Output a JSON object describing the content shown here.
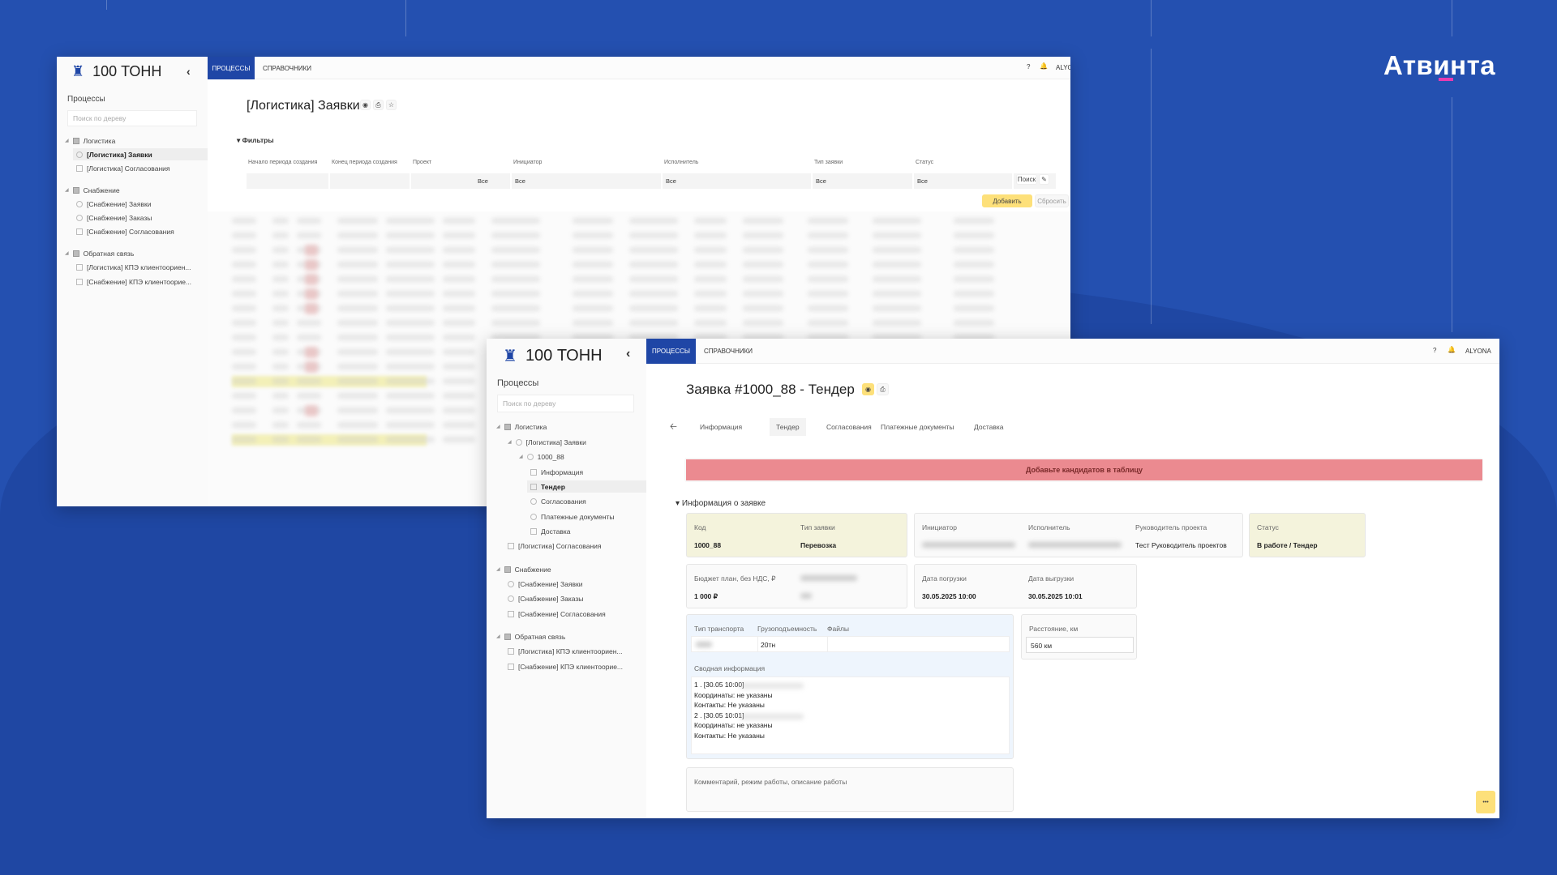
{
  "brand": {
    "logo_text": "Атвинта"
  },
  "app": {
    "name": "100 ТОНН",
    "nav_tabs": [
      "ПРОЦЕССЫ",
      "СПРАВОЧНИКИ"
    ],
    "help": "?",
    "user": "ALYONA"
  },
  "back": {
    "sidebar_title": "Процессы",
    "search_placeholder": "Поиск по дереву",
    "tree": [
      {
        "label": "Логистика",
        "level": 0,
        "icon": "folder"
      },
      {
        "label": "[Логистика] Заявки",
        "level": 1,
        "icon": "circle",
        "selected": true
      },
      {
        "label": "[Логистика] Согласования",
        "level": 1,
        "icon": "grid"
      },
      {
        "label": "Снабжение",
        "level": 0,
        "icon": "folder"
      },
      {
        "label": "[Снабжение] Заявки",
        "level": 1,
        "icon": "circle"
      },
      {
        "label": "[Снабжение] Заказы",
        "level": 1,
        "icon": "circle"
      },
      {
        "label": "[Снабжение] Согласования",
        "level": 1,
        "icon": "grid"
      },
      {
        "label": "Обратная связь",
        "level": 0,
        "icon": "folder"
      },
      {
        "label": "[Логистика] КПЭ клиентоориен...",
        "level": 1,
        "icon": "grid"
      },
      {
        "label": "[Снабжение] КПЭ клиентоорие...",
        "level": 1,
        "icon": "grid"
      }
    ],
    "title": "[Логистика] Заявки",
    "filters_label": "Фильтры",
    "filters": [
      {
        "label": "Начало периода создания",
        "value": ""
      },
      {
        "label": "Конец периода создания",
        "value": ""
      },
      {
        "label": "Проект",
        "value": "Все"
      },
      {
        "label": "Инициатор",
        "value": "Все"
      },
      {
        "label": "Исполнитель",
        "value": "Все"
      },
      {
        "label": "Тип заявки",
        "value": "Все"
      },
      {
        "label": "Статус",
        "value": "Все"
      }
    ],
    "search_button": "Поиск",
    "add_button": "Добавить",
    "reset_button": "Сбросить"
  },
  "front": {
    "sidebar_title": "Процессы",
    "search_placeholder": "Поиск по дереву",
    "tree": [
      {
        "label": "Логистика",
        "level": 0,
        "icon": "folder"
      },
      {
        "label": "[Логистика] Заявки",
        "level": 1,
        "icon": "circle"
      },
      {
        "label": "1000_88",
        "level": 2,
        "icon": "circle"
      },
      {
        "label": "Информация",
        "level": 3,
        "icon": "grid"
      },
      {
        "label": "Тендер",
        "level": 3,
        "icon": "grid",
        "selected": true
      },
      {
        "label": "Согласования",
        "level": 3,
        "icon": "circle"
      },
      {
        "label": "Платежные документы",
        "level": 3,
        "icon": "circle"
      },
      {
        "label": "Доставка",
        "level": 3,
        "icon": "grid"
      },
      {
        "label": "[Логистика] Согласования",
        "level": 1,
        "icon": "grid"
      },
      {
        "label": "Снабжение",
        "level": 0,
        "icon": "folder"
      },
      {
        "label": "[Снабжение] Заявки",
        "level": 1,
        "icon": "circle"
      },
      {
        "label": "[Снабжение] Заказы",
        "level": 1,
        "icon": "circle"
      },
      {
        "label": "[Снабжение] Согласования",
        "level": 1,
        "icon": "grid"
      },
      {
        "label": "Обратная связь",
        "level": 0,
        "icon": "folder"
      },
      {
        "label": "[Логистика] КПЭ клиентоориен...",
        "level": 1,
        "icon": "grid"
      },
      {
        "label": "[Снабжение] КПЭ клиентоорие...",
        "level": 1,
        "icon": "grid"
      }
    ],
    "title": "Заявка #1000_88 - Тендер",
    "tabs": [
      "Информация",
      "Тендер",
      "Согласования",
      "Платежные документы",
      "Доставка"
    ],
    "active_tab": "Тендер",
    "alert": "Добавьте кандидатов в таблицу",
    "alert_color": "#eb8a90",
    "section": "Информация о заявке",
    "code_label": "Код",
    "code": "1000_88",
    "type_label": "Тип заявки",
    "type": "Перевозка",
    "initiator_label": "Инициатор",
    "executor_label": "Исполнитель",
    "pm_label": "Руководитель проекта",
    "pm": "Тест Руководитель проектов",
    "status_label": "Статус",
    "status": "В работе / Тендер",
    "budget_label": "Бюджет план, без НДС, ₽",
    "budget": "1 000 ₽",
    "load_label": "Дата погрузки",
    "load": "30.05.2025 10:00",
    "unload_label": "Дата выгрузки",
    "unload": "30.05.2025 10:01",
    "transport_label": "Тип транспорта",
    "capacity_label": "Грузоподъемность",
    "capacity": "20тн",
    "files_label": "Файлы",
    "distance_label": "Расстояние, км",
    "distance": "560 км",
    "summary_label": "Сводная информация",
    "summary": [
      "1 . [30.05 10:00]",
      "Координаты: не указаны",
      "Контакты: Не указаны",
      "2 . [30.05 10:01]",
      "Координаты: не указаны",
      "Контакты: Не указаны"
    ],
    "comment_label": "Комментарий, режим работы, описание работы",
    "more_button": "•••"
  }
}
